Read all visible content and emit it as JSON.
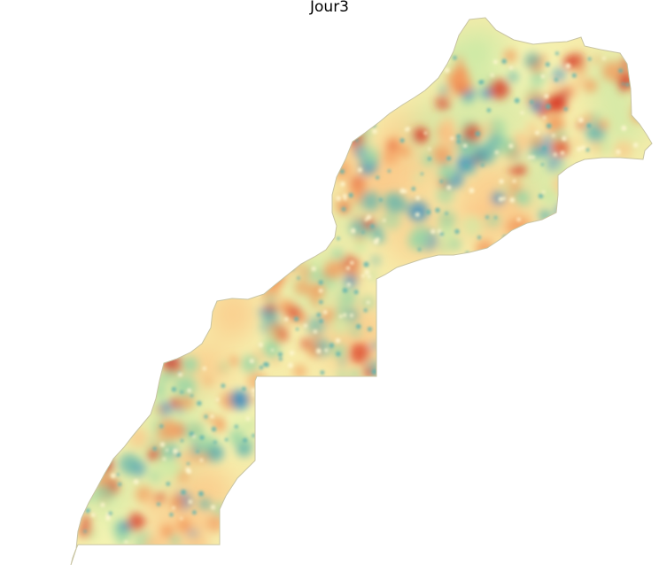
{
  "map": {
    "title": "Jour3",
    "colormap": "Spectral",
    "palette": {
      "base": "#f6ecaa",
      "outline": "#c8c4a2",
      "red": "#d7301f",
      "orange": "#f39a5c",
      "peach": "#fbc98a",
      "yellow": "#f3f4b4",
      "light_green": "#cfeaa6",
      "green": "#9bd6a4",
      "teal": "#5fb3ad",
      "blue": "#3b8fc0"
    }
  }
}
